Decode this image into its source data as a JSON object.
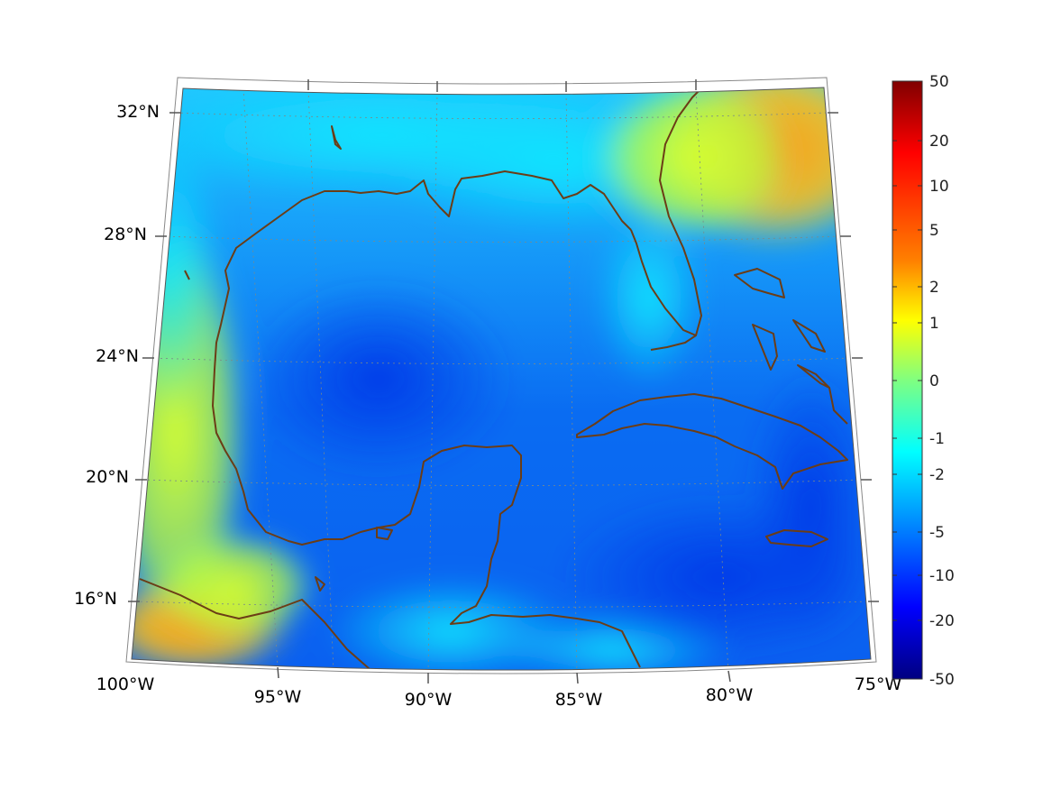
{
  "map": {
    "lat_labels": [
      {
        "value": 32,
        "text": "32°N"
      },
      {
        "value": 28,
        "text": "28°N"
      },
      {
        "value": 24,
        "text": "24°N"
      },
      {
        "value": 20,
        "text": "20°N"
      },
      {
        "value": 16,
        "text": "16°N"
      }
    ],
    "lon_labels": [
      {
        "value": -100,
        "text": "100°W"
      },
      {
        "value": -95,
        "text": "95°W"
      },
      {
        "value": -90,
        "text": "90°W"
      },
      {
        "value": -85,
        "text": "85°W"
      },
      {
        "value": -80,
        "text": "80°W"
      },
      {
        "value": -75,
        "text": "75°W"
      }
    ],
    "coastline_color": "#6b3d16",
    "grid_color": "#7a8a8a"
  },
  "colorbar": {
    "ticks": [
      "50",
      "20",
      "10",
      "5",
      "2",
      "1",
      "0",
      "-1",
      "-2",
      "-5",
      "-10",
      "-20",
      "-50"
    ],
    "colormap": "jet",
    "colors": [
      "#800000",
      "#ff0000",
      "#ff8000",
      "#ffff00",
      "#80ff80",
      "#00ffff",
      "#0080ff",
      "#0000ff",
      "#000080"
    ]
  }
}
